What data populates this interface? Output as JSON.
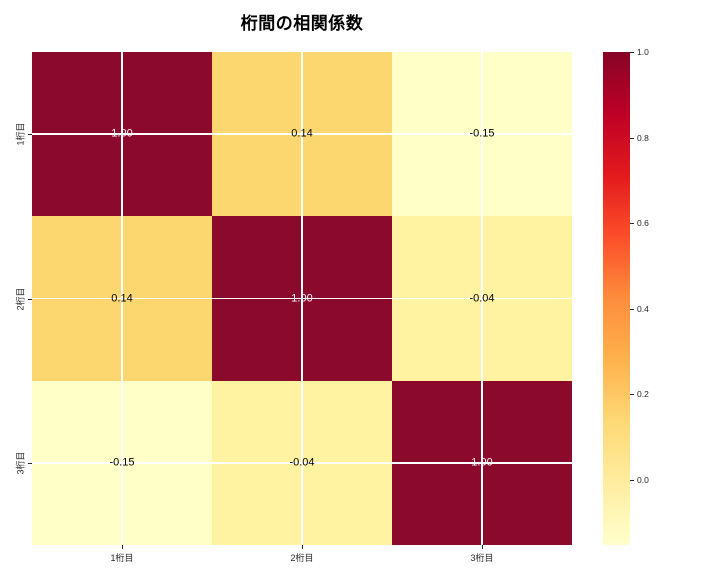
{
  "title": "桁間の相関係数",
  "chart_data": {
    "type": "heatmap",
    "title": "桁間の相関係数",
    "categories": [
      "1桁目",
      "2桁目",
      "3桁目"
    ],
    "rows": [
      "1桁目",
      "2桁目",
      "3桁目"
    ],
    "values": [
      [
        1.0,
        0.14,
        -0.15
      ],
      [
        0.14,
        1.0,
        -0.04
      ],
      [
        -0.15,
        -0.04,
        1.0
      ]
    ],
    "cell_labels": [
      [
        "1.00",
        "0.14",
        "-0.15"
      ],
      [
        "0.14",
        "1.00",
        "-0.04"
      ],
      [
        "-0.15",
        "-0.04",
        "1.00"
      ]
    ],
    "cell_colors": [
      [
        "#8b092b",
        "#fcd76f",
        "#ffffc8"
      ],
      [
        "#fcd76f",
        "#8b092b",
        "#fff2a0"
      ],
      [
        "#ffffc8",
        "#fff2a0",
        "#8b092b"
      ]
    ],
    "text_colors": [
      [
        "#ffffff",
        "#000000",
        "#000000"
      ],
      [
        "#000000",
        "#ffffff",
        "#000000"
      ],
      [
        "#000000",
        "#000000",
        "#ffffff"
      ]
    ],
    "colormap": "YlOrRd",
    "vmin": -0.152,
    "vmax": 1.0,
    "grid": true,
    "gridline_color": "#ffffff",
    "colorbar": {
      "position": "right",
      "tick_labels": [
        "1.0",
        "0.8",
        "0.6",
        "0.4",
        "0.2",
        "0.0"
      ],
      "tick_values": [
        1.0,
        0.8,
        0.6,
        0.4,
        0.2,
        0.0
      ],
      "gradient_top_to_bottom": [
        "#870427",
        "#bd0026",
        "#e31a1c",
        "#fc4e2a",
        "#fd8d3c",
        "#feb24c",
        "#fed976",
        "#ffeda0",
        "#ffffcc"
      ]
    }
  }
}
